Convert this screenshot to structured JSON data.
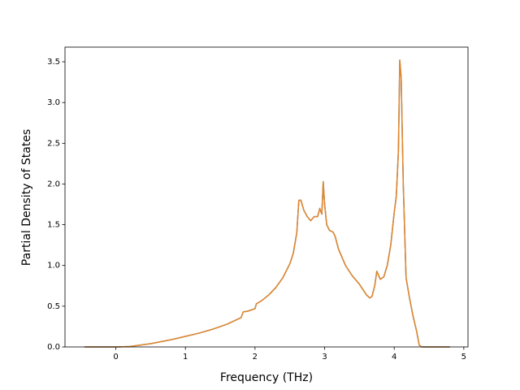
{
  "chart_data": {
    "type": "line",
    "x_label": "Frequency (THz)",
    "y_label": "Partial Density of States",
    "x": [
      -0.45,
      0,
      0.2,
      0.5,
      0.8,
      1.0,
      1.2,
      1.4,
      1.6,
      1.8,
      1.83,
      1.9,
      2.0,
      2.02,
      2.1,
      2.2,
      2.3,
      2.4,
      2.5,
      2.55,
      2.6,
      2.63,
      2.66,
      2.7,
      2.75,
      2.8,
      2.85,
      2.9,
      2.93,
      2.96,
      2.98,
      3.0,
      3.03,
      3.07,
      3.12,
      3.15,
      3.2,
      3.3,
      3.4,
      3.5,
      3.6,
      3.65,
      3.68,
      3.72,
      3.75,
      3.8,
      3.85,
      3.9,
      3.95,
      4.0,
      4.03,
      4.06,
      4.08,
      4.1,
      4.13,
      4.17,
      4.22,
      4.27,
      4.32,
      4.36,
      4.4,
      4.8
    ],
    "series": [
      {
        "color": "#1f77b4",
        "values": [
          0,
          0,
          0.005,
          0.04,
          0.09,
          0.13,
          0.17,
          0.22,
          0.28,
          0.36,
          0.43,
          0.44,
          0.47,
          0.53,
          0.57,
          0.64,
          0.73,
          0.85,
          1.02,
          1.15,
          1.4,
          1.8,
          1.8,
          1.68,
          1.6,
          1.55,
          1.6,
          1.6,
          1.7,
          1.63,
          2.03,
          1.75,
          1.5,
          1.43,
          1.41,
          1.36,
          1.2,
          1.0,
          0.87,
          0.77,
          0.64,
          0.6,
          0.62,
          0.75,
          0.93,
          0.83,
          0.86,
          1.0,
          1.25,
          1.65,
          1.85,
          2.4,
          3.52,
          3.3,
          2.0,
          0.85,
          0.6,
          0.38,
          0.2,
          0.02,
          0,
          0
        ]
      },
      {
        "color": "#e8872a",
        "values": [
          0,
          0,
          0.005,
          0.04,
          0.09,
          0.13,
          0.17,
          0.22,
          0.28,
          0.36,
          0.43,
          0.44,
          0.47,
          0.53,
          0.57,
          0.64,
          0.73,
          0.85,
          1.02,
          1.15,
          1.4,
          1.8,
          1.8,
          1.68,
          1.6,
          1.55,
          1.6,
          1.6,
          1.7,
          1.63,
          2.03,
          1.75,
          1.5,
          1.43,
          1.41,
          1.36,
          1.2,
          1.0,
          0.87,
          0.77,
          0.64,
          0.6,
          0.62,
          0.75,
          0.93,
          0.83,
          0.86,
          1.0,
          1.25,
          1.65,
          1.85,
          2.4,
          3.52,
          3.3,
          2.0,
          0.85,
          0.6,
          0.38,
          0.2,
          0.02,
          0,
          0
        ]
      }
    ],
    "xlim": [
      -0.73,
      5.06
    ],
    "ylim": [
      0,
      3.68
    ],
    "xticks": [
      0,
      1,
      2,
      3,
      4,
      5
    ],
    "yticks": [
      {
        "value": 0,
        "label": "0.0"
      },
      {
        "value": 0.5,
        "label": "0.5"
      },
      {
        "value": 1,
        "label": "1.0"
      },
      {
        "value": 1.5,
        "label": "1.5"
      },
      {
        "value": 2,
        "label": "2.0"
      },
      {
        "value": 2.5,
        "label": "2.5"
      },
      {
        "value": 3,
        "label": "3.0"
      },
      {
        "value": 3.5,
        "label": "3.5"
      }
    ],
    "grid": false
  }
}
